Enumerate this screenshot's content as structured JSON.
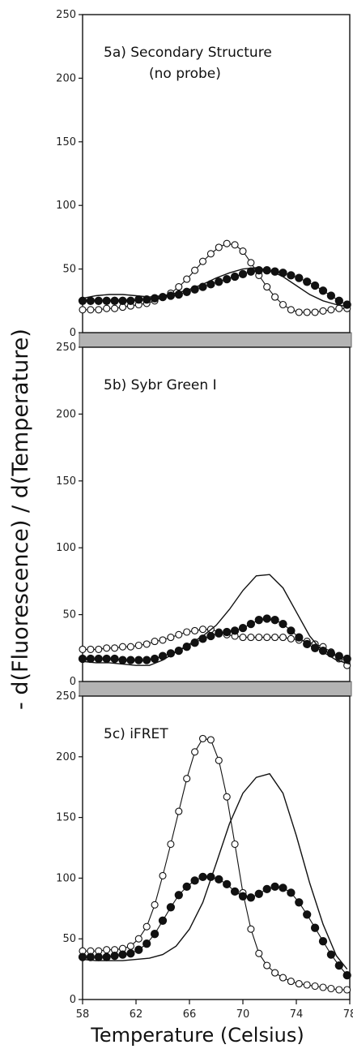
{
  "figure": {
    "ylabel": "- d(Fluorescence) / d(Temperature)",
    "xlabel": "Temperature (Celsius)",
    "xticks": [
      "58",
      "62",
      "66",
      "70",
      "74",
      "78"
    ]
  },
  "colors": {
    "line": "#111111",
    "divider": "#b3b3b3",
    "hollow_fill": "#ffffff",
    "filled": "#111111"
  },
  "chart_data": [
    {
      "type": "line",
      "title_lines": [
        "5a) Secondary Structure",
        "(no probe)"
      ],
      "ylim": [
        0,
        250
      ],
      "xlim": [
        58,
        78
      ],
      "yticks": [
        "0",
        "50",
        "100",
        "150",
        "200",
        "250"
      ],
      "series": [
        {
          "marker": "hollow-circle",
          "x": [
            58,
            58.6,
            59.2,
            59.8,
            60.4,
            61,
            61.6,
            62.2,
            62.8,
            63.4,
            64,
            64.6,
            65.2,
            65.8,
            66.4,
            67,
            67.6,
            68.2,
            68.8,
            69.4,
            70,
            70.6,
            71.2,
            71.8,
            72.4,
            73,
            73.6,
            74.2,
            74.8,
            75.4,
            76,
            76.6,
            77.2,
            77.8
          ],
          "y": [
            18,
            18,
            18,
            19,
            19,
            20,
            21,
            22,
            23,
            25,
            28,
            31,
            36,
            42,
            49,
            56,
            62,
            67,
            70,
            69,
            64,
            55,
            45,
            36,
            28,
            22,
            18,
            16,
            16,
            16,
            17,
            18,
            19,
            19
          ]
        },
        {
          "marker": "filled-circle",
          "x": [
            58,
            58.6,
            59.2,
            59.8,
            60.4,
            61,
            61.6,
            62.2,
            62.8,
            63.4,
            64,
            64.6,
            65.2,
            65.8,
            66.4,
            67,
            67.6,
            68.2,
            68.8,
            69.4,
            70,
            70.6,
            71.2,
            71.8,
            72.4,
            73,
            73.6,
            74.2,
            74.8,
            75.4,
            76,
            76.6,
            77.2,
            77.8
          ],
          "y": [
            25,
            25,
            25,
            25,
            25,
            25,
            25,
            26,
            26,
            27,
            28,
            29,
            30,
            32,
            34,
            36,
            38,
            40,
            42,
            44,
            46,
            48,
            49,
            49,
            48,
            47,
            45,
            43,
            40,
            37,
            33,
            29,
            25,
            22
          ]
        },
        {
          "marker": "none",
          "x": [
            58,
            59,
            60,
            61,
            62,
            63,
            64,
            65,
            66,
            67,
            68,
            69,
            70,
            71,
            72,
            73,
            74,
            75,
            76,
            77,
            78
          ],
          "y": [
            27,
            29,
            30,
            30,
            29,
            28,
            29,
            31,
            34,
            38,
            43,
            47,
            50,
            51,
            49,
            44,
            37,
            30,
            25,
            22,
            20
          ]
        }
      ]
    },
    {
      "type": "line",
      "title_lines": [
        "5b) Sybr Green I"
      ],
      "ylim": [
        0,
        250
      ],
      "xlim": [
        58,
        78
      ],
      "yticks": [
        "0",
        "50",
        "100",
        "150",
        "200",
        "250"
      ],
      "series": [
        {
          "marker": "hollow-circle",
          "x": [
            58,
            58.6,
            59.2,
            59.8,
            60.4,
            61,
            61.6,
            62.2,
            62.8,
            63.4,
            64,
            64.6,
            65.2,
            65.8,
            66.4,
            67,
            67.6,
            68.2,
            68.8,
            69.4,
            70,
            70.6,
            71.2,
            71.8,
            72.4,
            73,
            73.6,
            74.2,
            74.8,
            75.4,
            76,
            76.6,
            77.2,
            77.8
          ],
          "y": [
            24,
            24,
            24,
            25,
            25,
            26,
            26,
            27,
            28,
            30,
            31,
            33,
            35,
            37,
            38,
            39,
            39,
            37,
            35,
            34,
            33,
            33,
            33,
            33,
            33,
            33,
            32,
            31,
            30,
            28,
            26,
            22,
            17,
            12
          ]
        },
        {
          "marker": "filled-circle",
          "x": [
            58,
            58.6,
            59.2,
            59.8,
            60.4,
            61,
            61.6,
            62.2,
            62.8,
            63.4,
            64,
            64.6,
            65.2,
            65.8,
            66.4,
            67,
            67.6,
            68.2,
            68.8,
            69.4,
            70,
            70.6,
            71.2,
            71.8,
            72.4,
            73,
            73.6,
            74.2,
            74.8,
            75.4,
            76,
            76.6,
            77.2,
            77.8
          ],
          "y": [
            17,
            17,
            17,
            17,
            17,
            16,
            16,
            16,
            16,
            17,
            19,
            21,
            23,
            26,
            29,
            32,
            34,
            36,
            37,
            38,
            40,
            43,
            46,
            47,
            46,
            43,
            38,
            33,
            28,
            25,
            23,
            21,
            19,
            17
          ]
        },
        {
          "marker": "none",
          "x": [
            58,
            59,
            60,
            61,
            62,
            63,
            64,
            65,
            66,
            67,
            68,
            69,
            70,
            71,
            72,
            73,
            74,
            75,
            76,
            77,
            78
          ],
          "y": [
            15,
            14,
            14,
            13,
            12,
            12,
            16,
            22,
            28,
            34,
            42,
            54,
            68,
            79,
            80,
            70,
            52,
            34,
            22,
            16,
            13
          ]
        }
      ]
    },
    {
      "type": "line",
      "title_lines": [
        "5c) iFRET"
      ],
      "ylim": [
        0,
        250
      ],
      "xlim": [
        58,
        78
      ],
      "yticks": [
        "0",
        "50",
        "100",
        "150",
        "200",
        "250"
      ],
      "series": [
        {
          "marker": "hollow-circle",
          "x": [
            58,
            58.6,
            59.2,
            59.8,
            60.4,
            61,
            61.6,
            62.2,
            62.8,
            63.4,
            64,
            64.6,
            65.2,
            65.8,
            66.4,
            67,
            67.6,
            68.2,
            68.8,
            69.4,
            70,
            70.6,
            71.2,
            71.8,
            72.4,
            73,
            73.6,
            74.2,
            74.8,
            75.4,
            76,
            76.6,
            77.2,
            77.8
          ],
          "y": [
            40,
            40,
            40,
            41,
            41,
            42,
            44,
            50,
            60,
            78,
            102,
            128,
            155,
            182,
            204,
            215,
            214,
            197,
            167,
            128,
            88,
            58,
            38,
            28,
            22,
            18,
            15,
            13,
            12,
            11,
            10,
            9,
            8,
            8
          ]
        },
        {
          "marker": "filled-circle",
          "x": [
            58,
            58.6,
            59.2,
            59.8,
            60.4,
            61,
            61.6,
            62.2,
            62.8,
            63.4,
            64,
            64.6,
            65.2,
            65.8,
            66.4,
            67,
            67.6,
            68.2,
            68.8,
            69.4,
            70,
            70.6,
            71.2,
            71.8,
            72.4,
            73,
            73.6,
            74.2,
            74.8,
            75.4,
            76,
            76.6,
            77.2,
            77.8
          ],
          "y": [
            35,
            35,
            35,
            35,
            36,
            37,
            38,
            41,
            46,
            54,
            65,
            76,
            86,
            93,
            98,
            101,
            101,
            99,
            95,
            89,
            85,
            84,
            87,
            91,
            93,
            92,
            88,
            80,
            70,
            59,
            48,
            37,
            28,
            20
          ]
        },
        {
          "marker": "none",
          "x": [
            58,
            59,
            60,
            61,
            62,
            63,
            64,
            65,
            66,
            67,
            68,
            69,
            70,
            71,
            72,
            73,
            74,
            75,
            76,
            77,
            77.8
          ],
          "y": [
            33,
            32,
            32,
            32,
            33,
            34,
            37,
            44,
            58,
            80,
            112,
            145,
            170,
            183,
            186,
            170,
            135,
            96,
            62,
            36,
            25
          ]
        }
      ]
    }
  ]
}
